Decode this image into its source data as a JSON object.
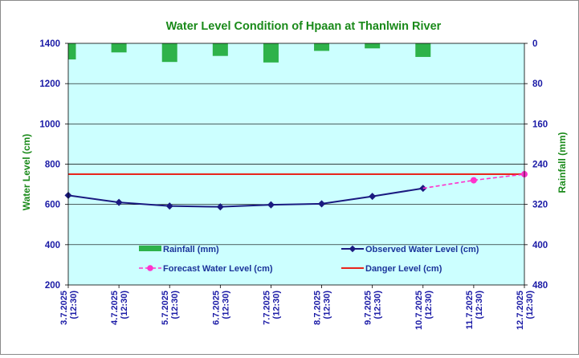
{
  "chart_data": {
    "type": "combo",
    "title": "Water Level Condition of Hpaan at Thanlwin River",
    "ylabel_left": "Water Level (cm)",
    "ylabel_right": "Rainfall (mm)",
    "ylim_left": [
      200,
      1400
    ],
    "ylim_right": [
      480,
      0
    ],
    "yticks_left": [
      200,
      400,
      600,
      800,
      1000,
      1200,
      1400
    ],
    "yticks_right": [
      480,
      400,
      320,
      240,
      160,
      80,
      0
    ],
    "categories": [
      [
        "3.7.2025",
        "(12:30)"
      ],
      [
        "4.7.2025",
        "(12:30)"
      ],
      [
        "5.7.2025",
        "(12:30)"
      ],
      [
        "6.7.2025",
        "(12:30)"
      ],
      [
        "7.7.2025",
        "(12:30)"
      ],
      [
        "8.7.2025",
        "(12:30)"
      ],
      [
        "9.7.2025",
        "(12:30)"
      ],
      [
        "10.7.2025",
        "(12:30)"
      ],
      [
        "11.7.2025",
        "(12:30)"
      ],
      [
        "12.7.2025",
        "(12:30)"
      ]
    ],
    "series": [
      {
        "name": "Rainfall (mm)",
        "kind": "bar",
        "axis": "right",
        "color": "#2eb24a",
        "values": [
          32,
          18,
          37,
          25,
          38,
          15,
          10,
          27,
          null,
          null
        ]
      },
      {
        "name": "Observed Water Level (cm)",
        "kind": "line",
        "axis": "left",
        "color": "#1a1a80",
        "values": [
          645,
          610,
          592,
          588,
          598,
          603,
          640,
          680,
          null,
          null
        ]
      },
      {
        "name": "Forecast Water Level (cm)",
        "kind": "dashed-line",
        "axis": "left",
        "color": "#ff33cc",
        "values": [
          null,
          null,
          null,
          null,
          null,
          null,
          null,
          680,
          720,
          750
        ]
      },
      {
        "name": "Danger Level (cm)",
        "kind": "hline",
        "axis": "left",
        "color": "#e8251c",
        "value": 750
      }
    ],
    "grid": true,
    "plot_background": "#ccffff",
    "legend_placement": "inside-bottom"
  }
}
